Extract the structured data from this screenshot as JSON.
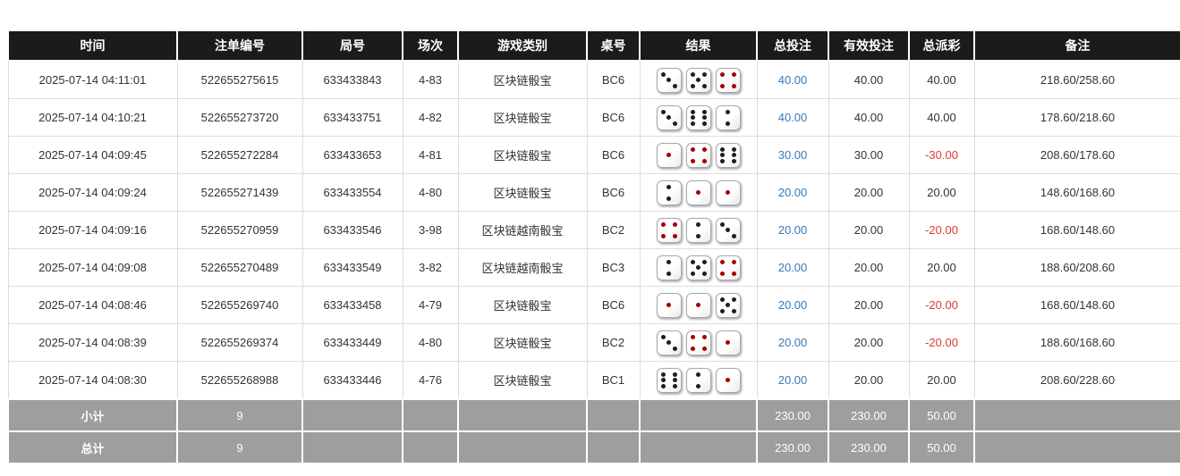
{
  "colors": {
    "header_bg": "#1b1b1b",
    "totals_bg": "#9e9e9e",
    "bet_amount_blue": "#337ab7",
    "negative_red": "#e33539",
    "dice_pip_black": "#1d1d1d",
    "dice_pip_red": "#a40000"
  },
  "table": {
    "columns": [
      {
        "key": "time",
        "label": "时间"
      },
      {
        "key": "bet-id",
        "label": "注单编号"
      },
      {
        "key": "round-id",
        "label": "局号"
      },
      {
        "key": "session",
        "label": "场次"
      },
      {
        "key": "game-type",
        "label": "游戏类别"
      },
      {
        "key": "table-no",
        "label": "桌号"
      },
      {
        "key": "result",
        "label": "结果"
      },
      {
        "key": "total-bet",
        "label": "总投注"
      },
      {
        "key": "valid-bet",
        "label": "有效投注"
      },
      {
        "key": "total-payout",
        "label": "总派彩"
      },
      {
        "key": "remark",
        "label": "备注"
      }
    ],
    "rows": [
      {
        "time": "2025-07-14 04:11:01",
        "bet_id": "522655275615",
        "round_id": "633433843",
        "session": "4-83",
        "game_type": "区块链骰宝",
        "table_no": "BC6",
        "dice": [
          3,
          5,
          4
        ],
        "total_bet": "40.00",
        "valid_bet": "40.00",
        "total_payout": "40.00",
        "remark": "218.60/258.60"
      },
      {
        "time": "2025-07-14 04:10:21",
        "bet_id": "522655273720",
        "round_id": "633433751",
        "session": "4-82",
        "game_type": "区块链骰宝",
        "table_no": "BC6",
        "dice": [
          3,
          6,
          2
        ],
        "total_bet": "40.00",
        "valid_bet": "40.00",
        "total_payout": "40.00",
        "remark": "178.60/218.60"
      },
      {
        "time": "2025-07-14 04:09:45",
        "bet_id": "522655272284",
        "round_id": "633433653",
        "session": "4-81",
        "game_type": "区块链骰宝",
        "table_no": "BC6",
        "dice": [
          1,
          4,
          6
        ],
        "total_bet": "30.00",
        "valid_bet": "30.00",
        "total_payout": "-30.00",
        "remark": "208.60/178.60"
      },
      {
        "time": "2025-07-14 04:09:24",
        "bet_id": "522655271439",
        "round_id": "633433554",
        "session": "4-80",
        "game_type": "区块链骰宝",
        "table_no": "BC6",
        "dice": [
          2,
          1,
          1
        ],
        "total_bet": "20.00",
        "valid_bet": "20.00",
        "total_payout": "20.00",
        "remark": "148.60/168.60"
      },
      {
        "time": "2025-07-14 04:09:16",
        "bet_id": "522655270959",
        "round_id": "633433546",
        "session": "3-98",
        "game_type": "区块链越南骰宝",
        "table_no": "BC2",
        "dice": [
          4,
          2,
          3
        ],
        "total_bet": "20.00",
        "valid_bet": "20.00",
        "total_payout": "-20.00",
        "remark": "168.60/148.60"
      },
      {
        "time": "2025-07-14 04:09:08",
        "bet_id": "522655270489",
        "round_id": "633433549",
        "session": "3-82",
        "game_type": "区块链越南骰宝",
        "table_no": "BC3",
        "dice": [
          2,
          5,
          4
        ],
        "total_bet": "20.00",
        "valid_bet": "20.00",
        "total_payout": "20.00",
        "remark": "188.60/208.60"
      },
      {
        "time": "2025-07-14 04:08:46",
        "bet_id": "522655269740",
        "round_id": "633433458",
        "session": "4-79",
        "game_type": "区块链骰宝",
        "table_no": "BC6",
        "dice": [
          1,
          1,
          5
        ],
        "total_bet": "20.00",
        "valid_bet": "20.00",
        "total_payout": "-20.00",
        "remark": "168.60/148.60"
      },
      {
        "time": "2025-07-14 04:08:39",
        "bet_id": "522655269374",
        "round_id": "633433449",
        "session": "4-80",
        "game_type": "区块链骰宝",
        "table_no": "BC2",
        "dice": [
          3,
          4,
          1
        ],
        "total_bet": "20.00",
        "valid_bet": "20.00",
        "total_payout": "-20.00",
        "remark": "188.60/168.60"
      },
      {
        "time": "2025-07-14 04:08:30",
        "bet_id": "522655268988",
        "round_id": "633433446",
        "session": "4-76",
        "game_type": "区块链骰宝",
        "table_no": "BC1",
        "dice": [
          6,
          2,
          1
        ],
        "total_bet": "20.00",
        "valid_bet": "20.00",
        "total_payout": "20.00",
        "remark": "208.60/228.60"
      }
    ],
    "subtotal": {
      "label": "小计",
      "count": "9",
      "total_bet": "230.00",
      "valid_bet": "230.00",
      "total_payout": "50.00"
    },
    "grand_total": {
      "label": "总计",
      "count": "9",
      "total_bet": "230.00",
      "valid_bet": "230.00",
      "total_payout": "50.00"
    }
  }
}
